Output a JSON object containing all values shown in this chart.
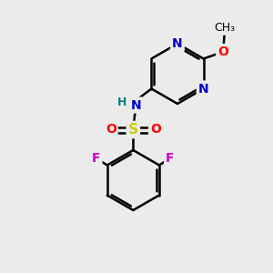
{
  "background_color": "#ebebeb",
  "bond_color": "#000000",
  "bond_width": 1.8,
  "atom_colors": {
    "N": "#0000cc",
    "O": "#ff0000",
    "S": "#cccc00",
    "F": "#cc00cc",
    "H": "#008080",
    "C": "#000000"
  },
  "font_size": 10,
  "figsize": [
    3.0,
    3.0
  ],
  "dpi": 100
}
